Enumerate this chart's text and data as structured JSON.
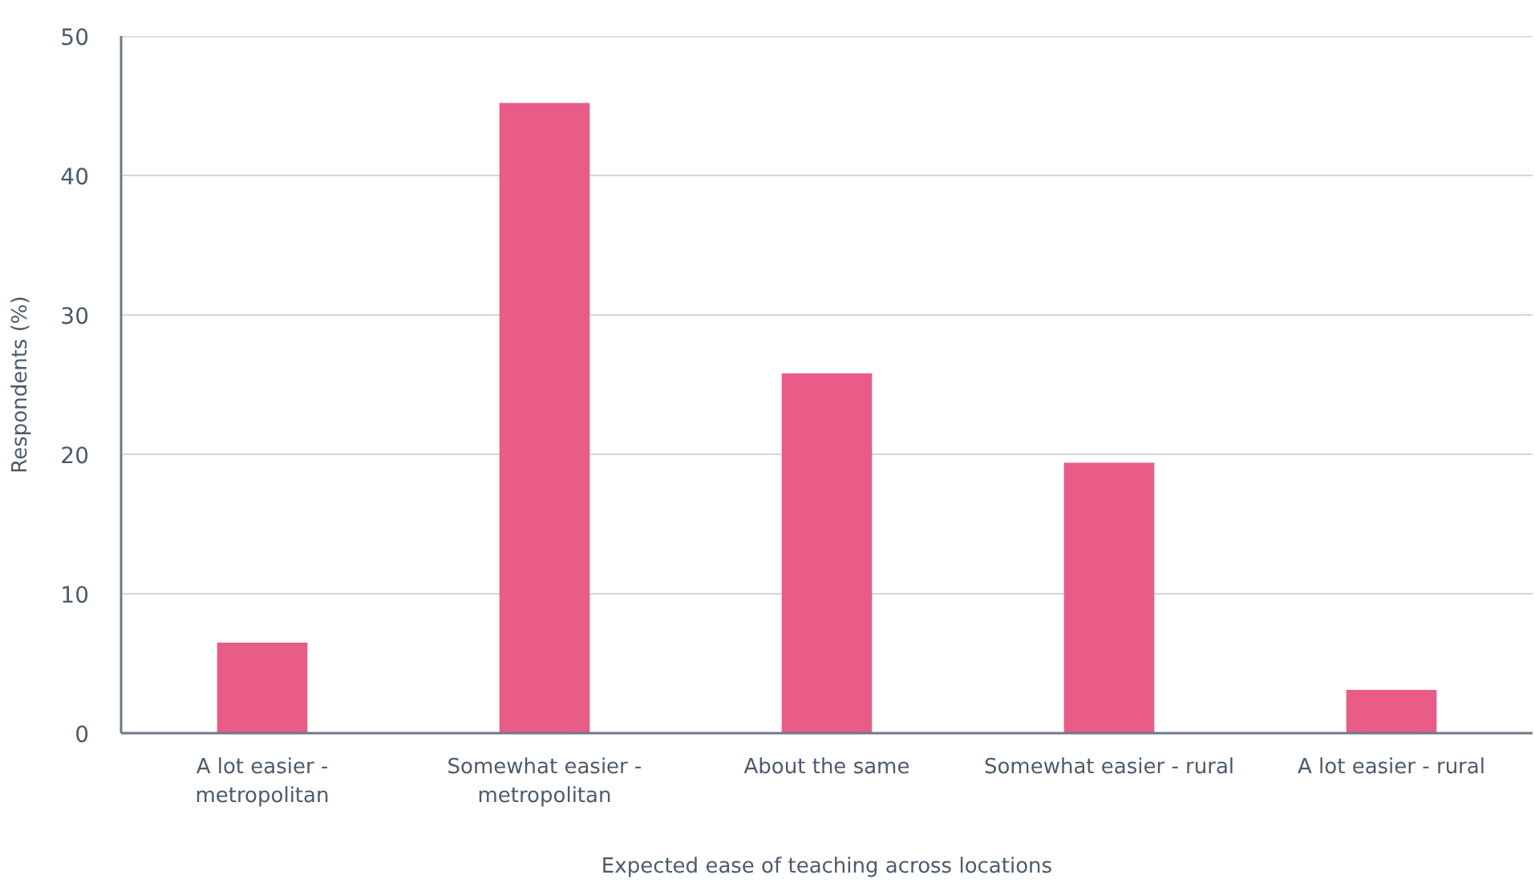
{
  "chart_data": {
    "type": "bar",
    "xlabel": "Expected ease of teaching across locations",
    "ylabel": "Respondents (%)",
    "categories": [
      "A lot easier - metropolitan",
      "Somewhat easier - metropolitan",
      "About the same",
      "Somewhat easier - rural",
      "A lot easier - rural"
    ],
    "values": [
      6.5,
      45.2,
      25.8,
      19.4,
      3.1
    ],
    "color": "#e95c87",
    "ylim": [
      0,
      50
    ],
    "yticks": [
      0,
      10,
      20,
      30,
      40,
      50
    ],
    "grid": "y"
  }
}
